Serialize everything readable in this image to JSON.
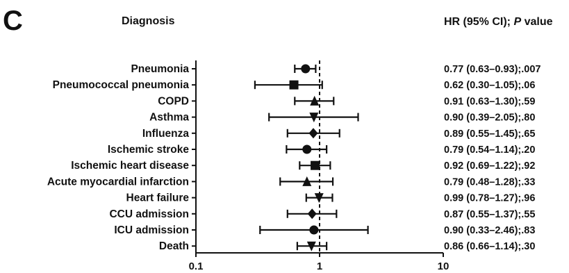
{
  "panel": {
    "letter": "C"
  },
  "headers": {
    "left": "Diagnosis",
    "right_prefix": "HR (95% CI); ",
    "right_italic": "P",
    "right_suffix": " value"
  },
  "chart_data": {
    "type": "forest",
    "x_scale": "log",
    "xlim": [
      0.1,
      10
    ],
    "x_ticks": [
      0.1,
      1,
      10
    ],
    "x_tick_labels": [
      "0.1",
      "1",
      "10"
    ],
    "reference_line": 1,
    "rows": [
      {
        "label": "Pneumonia",
        "hr": 0.77,
        "lo": 0.63,
        "hi": 0.93,
        "marker": "circle",
        "text": "0.77 (0.63–0.93);.007"
      },
      {
        "label": "Pneumococcal pneumonia",
        "hr": 0.62,
        "lo": 0.3,
        "hi": 1.05,
        "marker": "square",
        "text": "0.62 (0.30–1.05);.06"
      },
      {
        "label": "COPD",
        "hr": 0.91,
        "lo": 0.63,
        "hi": 1.3,
        "marker": "triangle",
        "text": "0.91 (0.63–1.30);.59"
      },
      {
        "label": "Asthma",
        "hr": 0.9,
        "lo": 0.39,
        "hi": 2.05,
        "marker": "triangle-down",
        "text": "0.90 (0.39–2.05);.80"
      },
      {
        "label": "Influenza",
        "hr": 0.89,
        "lo": 0.55,
        "hi": 1.45,
        "marker": "diamond",
        "text": "0.89 (0.55–1.45);.65"
      },
      {
        "label": "Ischemic stroke",
        "hr": 0.79,
        "lo": 0.54,
        "hi": 1.14,
        "marker": "circle",
        "text": "0.79 (0.54–1.14);.20"
      },
      {
        "label": "Ischemic heart disease",
        "hr": 0.92,
        "lo": 0.69,
        "hi": 1.22,
        "marker": "square",
        "text": "0.92 (0.69–1.22);.92"
      },
      {
        "label": "Acute myocardial infarction",
        "hr": 0.79,
        "lo": 0.48,
        "hi": 1.28,
        "marker": "triangle",
        "text": "0.79 (0.48–1.28);.33"
      },
      {
        "label": "Heart failure",
        "hr": 0.99,
        "lo": 0.78,
        "hi": 1.27,
        "marker": "triangle-down",
        "text": "0.99 (0.78–1.27);.96"
      },
      {
        "label": "CCU admission",
        "hr": 0.87,
        "lo": 0.55,
        "hi": 1.37,
        "marker": "diamond",
        "text": "0.87 (0.55–1.37);.55"
      },
      {
        "label": "ICU admission",
        "hr": 0.9,
        "lo": 0.33,
        "hi": 2.46,
        "marker": "circle",
        "text": "0.90 (0.33–2.46);.83"
      },
      {
        "label": "Death",
        "hr": 0.86,
        "lo": 0.66,
        "hi": 1.14,
        "marker": "triangle-down",
        "text": "0.86 (0.66–1.14);.30"
      }
    ]
  }
}
